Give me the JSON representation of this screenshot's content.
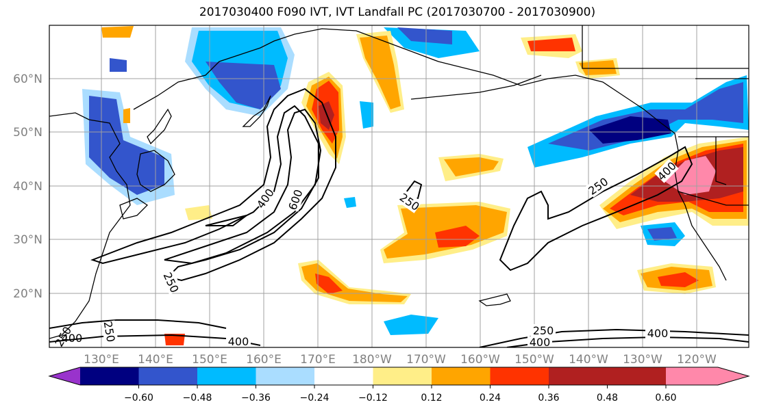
{
  "title": "2017030400 F090 IVT, IVT Landfall PC (2017030700 - 2017030900)",
  "lat_labels": [
    "60°N",
    "50°N",
    "40°N",
    "30°N",
    "20°N"
  ],
  "lon_labels": [
    "130°E",
    "140°E",
    "150°E",
    "160°E",
    "170°E",
    "180°W",
    "170°W",
    "160°W",
    "150°W",
    "140°W",
    "130°W",
    "120°W"
  ],
  "colorbar": {
    "colors": [
      "#9933cc",
      "#000080",
      "#3355cc",
      "#00bbff",
      "#aaddff",
      "#ffffff",
      "#ffee88",
      "#ffa500",
      "#ff3300",
      "#b02020",
      "#ff88aa"
    ],
    "labels": [
      "−0.60",
      "−0.48",
      "−0.36",
      "−0.24",
      "−0.12",
      "0.12",
      "0.24",
      "0.36",
      "0.48",
      "0.60"
    ]
  },
  "contour_labels": [
    "400",
    "600",
    "250",
    "250",
    "400",
    "250",
    "250",
    "400",
    "250",
    "400",
    "400",
    "250",
    "400"
  ],
  "colors": {
    "dark_blue": "#000080",
    "mid_blue": "#3355cc",
    "light_blue": "#00bbff",
    "pale_blue": "#aaddff",
    "yellow": "#ffee88",
    "orange": "#ffa500",
    "red_orange": "#ff3300",
    "dark_red": "#b02020",
    "pink": "#ff88aa"
  }
}
